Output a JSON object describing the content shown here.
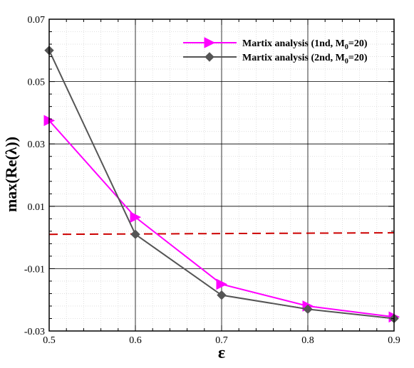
{
  "chart_data": {
    "type": "line",
    "xlabel": "ε",
    "ylabel": "max(Re(λ))",
    "xlim": [
      0.5,
      0.9
    ],
    "ylim": [
      -0.03,
      0.07
    ],
    "x_ticks": [
      "0.5",
      "0.6",
      "0.7",
      "0.8",
      "0.9"
    ],
    "y_ticks": [
      "-0.03",
      "-0.01",
      "0.01",
      "0.03",
      "0.05",
      "0.07"
    ],
    "grid": true,
    "legend_position": "top-right",
    "series": [
      {
        "name": "Martix analysis (1nd, M",
        "name_sub": "0",
        "name_tail": "=20)",
        "color": "#ff00ff",
        "marker": "triangle-right",
        "x": [
          0.5,
          0.6,
          0.7,
          0.8,
          0.9
        ],
        "y": [
          0.0375,
          0.0065,
          -0.015,
          -0.022,
          -0.0255
        ]
      },
      {
        "name": "Martix analysis (2nd, M",
        "name_sub": "0",
        "name_tail": "=20)",
        "color": "#555555",
        "marker": "diamond",
        "x": [
          0.5,
          0.6,
          0.7,
          0.8,
          0.9
        ],
        "y": [
          0.06,
          0.001,
          -0.0185,
          -0.023,
          -0.026
        ]
      }
    ],
    "reference_line": {
      "color": "#cc0000",
      "style": "dashed",
      "x": [
        0.5,
        0.9
      ],
      "y": [
        0.001,
        0.0015
      ]
    }
  }
}
